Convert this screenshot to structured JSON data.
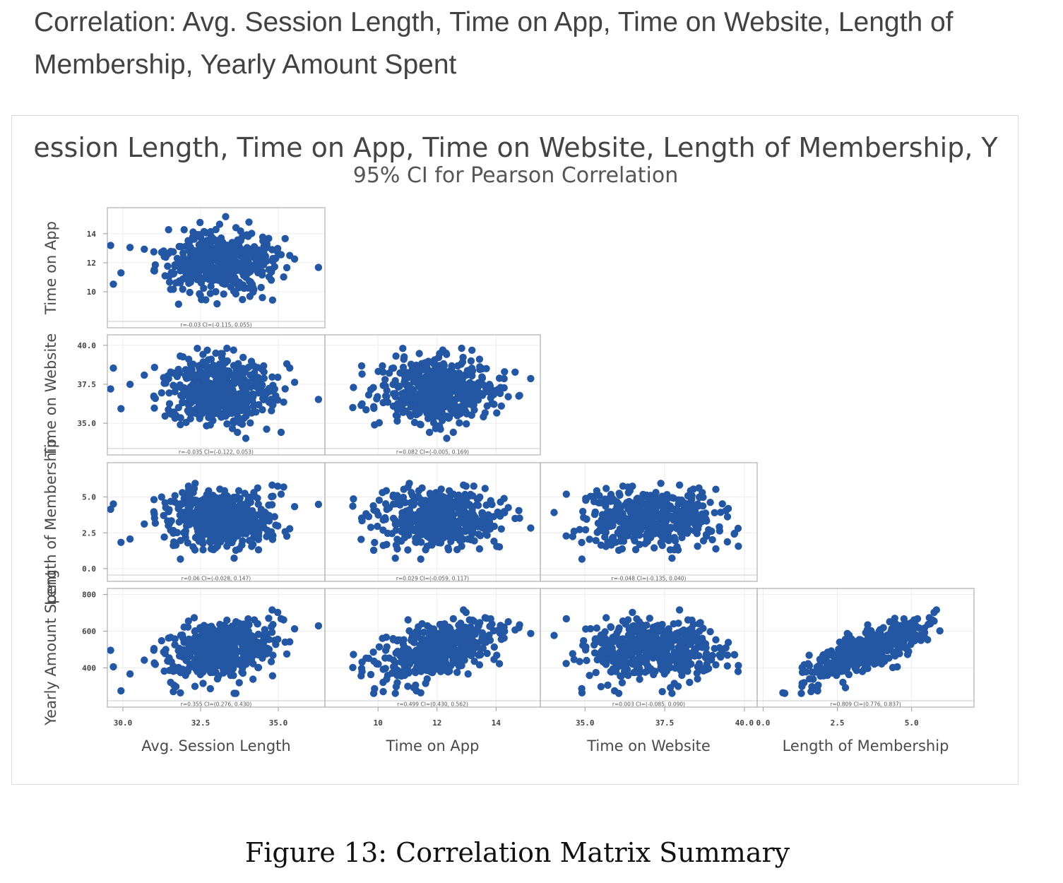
{
  "page": {
    "heading": "Correlation: Avg. Session Length, Time on App, Time on Website, Length of Membership, Yearly Amount Spent",
    "caption": "Figure 13: Correlation Matrix Summary"
  },
  "chart_data": {
    "type": "scatter",
    "title": "ession Length, Time on App, Time on Website, Length of Membership, Y",
    "subtitle": "95% CI for Pearson Correlation",
    "marker_color": "#2457a3",
    "variables": [
      {
        "name": "Avg. Session Length",
        "range": [
          29.5,
          36.5
        ],
        "ticks": [
          "30.0",
          "32.5",
          "35.0"
        ],
        "tick_values": [
          30,
          32.5,
          35
        ]
      },
      {
        "name": "Time on App",
        "range": [
          8.2,
          15.5
        ],
        "ticks": [
          "10",
          "12",
          "14"
        ],
        "tick_values": [
          10,
          12,
          14
        ]
      },
      {
        "name": "Time on Website",
        "range": [
          33.6,
          40.4
        ],
        "ticks": [
          "35.0",
          "37.5",
          "40.0"
        ],
        "tick_values": [
          35,
          37.5,
          40
        ]
      },
      {
        "name": "Length of Membership",
        "range": [
          -0.2,
          7.1
        ],
        "ticks": [
          "0.0",
          "2.5",
          "5.0"
        ],
        "tick_values": [
          0,
          2.5,
          5
        ]
      },
      {
        "name": "Yearly Amount Spent",
        "range": [
          240,
          810
        ],
        "ticks": [
          "400",
          "600",
          "800"
        ],
        "tick_values": [
          400,
          600,
          800
        ]
      }
    ],
    "x_axis_labels": [
      "Avg. Session Length",
      "Time on App",
      "Time on Website",
      "Length of Membership"
    ],
    "y_axis_labels": [
      "Time on App",
      "Time on Website",
      "Length of Membership",
      "Yearly Amount Spent"
    ],
    "panels": [
      {
        "x": "Avg. Session Length",
        "y": "Time on App",
        "r": -0.03,
        "ci": "r=-0.03 CI=(-0.115, 0.055)"
      },
      {
        "x": "Avg. Session Length",
        "y": "Time on Website",
        "r": -0.03,
        "ci": "r=-0.035 CI=(-0.122, 0.053)"
      },
      {
        "x": "Time on App",
        "y": "Time on Website",
        "r": 0.08,
        "ci": "r=0.082 CI=(-0.005, 0.169)"
      },
      {
        "x": "Avg. Session Length",
        "y": "Length of Membership",
        "r": 0.06,
        "ci": "r=0.06 CI=(-0.028, 0.147)"
      },
      {
        "x": "Time on App",
        "y": "Length of Membership",
        "r": 0.03,
        "ci": "r=0.029 CI=(-0.059, 0.117)"
      },
      {
        "x": "Time on Website",
        "y": "Length of Membership",
        "r": -0.05,
        "ci": "r=-0.048 CI=(-0.135, 0.040)"
      },
      {
        "x": "Avg. Session Length",
        "y": "Yearly Amount Spent",
        "r": 0.36,
        "ci": "r=0.355 CI=(0.276, 0.430)"
      },
      {
        "x": "Time on App",
        "y": "Yearly Amount Spent",
        "r": 0.5,
        "ci": "r=0.499 CI=(0.430, 0.562)"
      },
      {
        "x": "Time on Website",
        "y": "Yearly Amount Spent",
        "r": 0.0,
        "ci": "r=0.003 CI=(-0.085, 0.090)"
      },
      {
        "x": "Length of Membership",
        "y": "Yearly Amount Spent",
        "r": 0.81,
        "ci": "r=0.809 CI=(0.776, 0.837)"
      }
    ]
  }
}
